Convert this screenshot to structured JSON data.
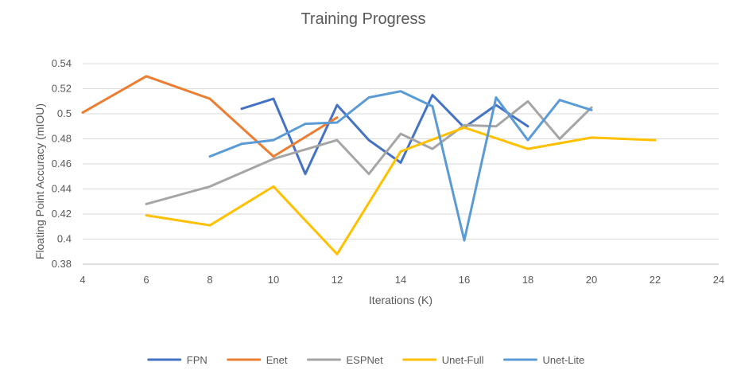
{
  "chart_data": {
    "type": "line",
    "title": "Training Progress",
    "xlabel": "Iterations (K)",
    "ylabel": "Floating Point Accuracy (mIOU)",
    "xlim": [
      4,
      24
    ],
    "ylim": [
      0.38,
      0.54
    ],
    "x_ticks": [
      "4",
      "6",
      "8",
      "10",
      "12",
      "14",
      "16",
      "18",
      "20",
      "22",
      "24"
    ],
    "y_ticks": [
      "0.38",
      "0.4",
      "0.42",
      "0.44",
      "0.46",
      "0.48",
      "0.5",
      "0.52",
      "0.54"
    ],
    "x_tick_values": [
      4,
      6,
      8,
      10,
      12,
      14,
      16,
      18,
      20,
      22,
      24
    ],
    "y_tick_values": [
      0.38,
      0.4,
      0.42,
      0.44,
      0.46,
      0.48,
      0.5,
      0.52,
      0.54
    ],
    "grid": "horizontal",
    "legend_position": "bottom",
    "series": [
      {
        "name": "FPN",
        "color": "#4472C4",
        "x": [
          9,
          10,
          11,
          12,
          13,
          14,
          15,
          16,
          17,
          18
        ],
        "y": [
          0.504,
          0.512,
          0.452,
          0.507,
          0.479,
          0.461,
          0.515,
          0.489,
          0.507,
          0.49
        ]
      },
      {
        "name": "Enet",
        "color": "#ED7D31",
        "x": [
          4,
          6,
          8,
          10,
          12
        ],
        "y": [
          0.501,
          0.53,
          0.512,
          0.466,
          0.497
        ]
      },
      {
        "name": "ESPNet",
        "color": "#A5A5A5",
        "x": [
          6,
          8,
          10,
          12,
          13,
          14,
          15,
          16,
          17,
          18,
          19,
          20
        ],
        "y": [
          0.428,
          0.442,
          0.464,
          0.479,
          0.452,
          0.484,
          0.472,
          0.491,
          0.49,
          0.51,
          0.48,
          0.505
        ]
      },
      {
        "name": "Unet-Full",
        "color": "#FFC000",
        "x": [
          6,
          8,
          10,
          12,
          14,
          16,
          18,
          20,
          22
        ],
        "y": [
          0.419,
          0.411,
          0.442,
          0.388,
          0.47,
          0.489,
          0.472,
          0.481,
          0.479
        ]
      },
      {
        "name": "Unet-Lite",
        "color": "#5B9BD5",
        "x": [
          8,
          9,
          10,
          11,
          12,
          13,
          14,
          15,
          16,
          17,
          18,
          19,
          20
        ],
        "y": [
          0.466,
          0.476,
          0.479,
          0.492,
          0.493,
          0.513,
          0.518,
          0.506,
          0.399,
          0.513,
          0.479,
          0.511,
          0.503
        ]
      }
    ]
  }
}
